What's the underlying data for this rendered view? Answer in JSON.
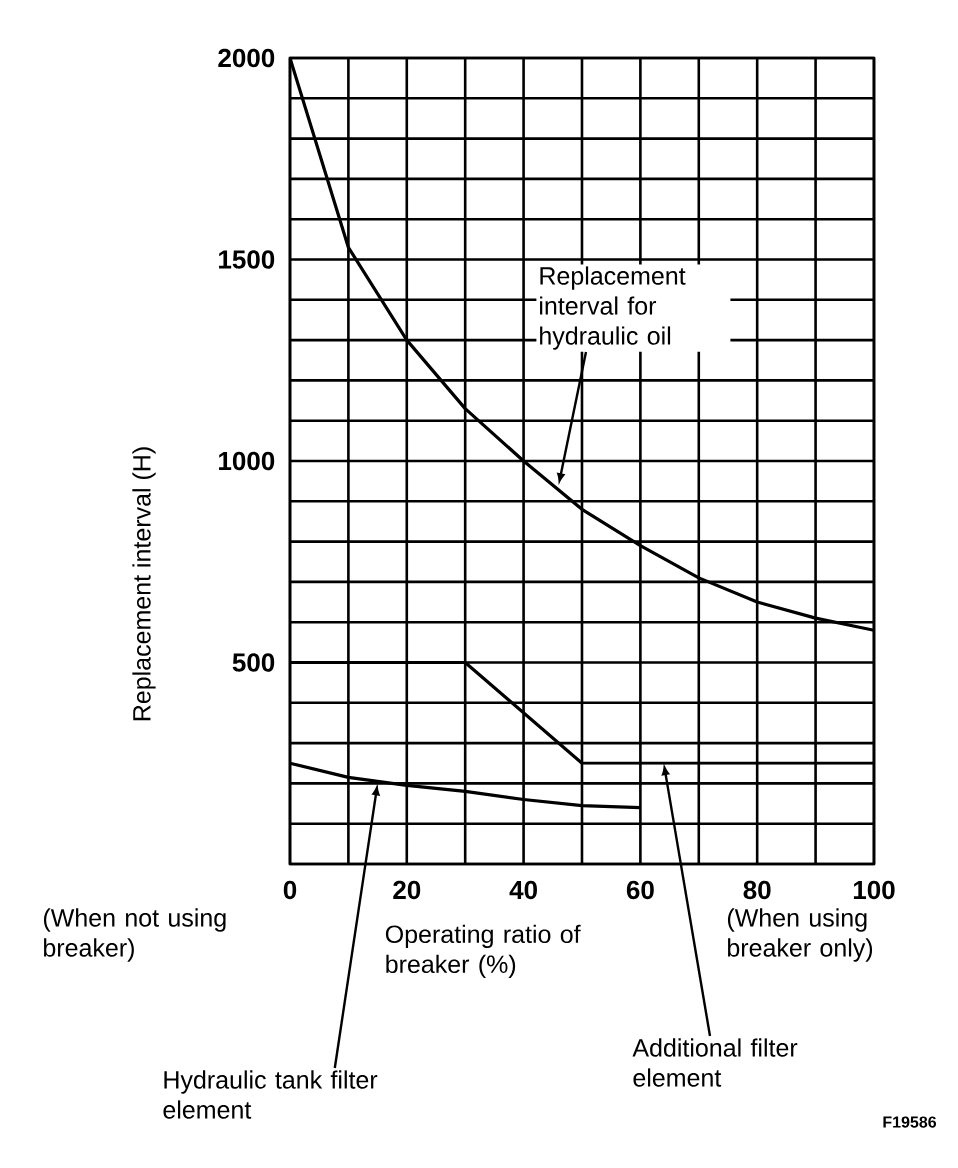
{
  "chart_data": {
    "type": "line",
    "ylabel": "Replacement interval (H)",
    "xlabel": "Operating ratio of breaker (%)",
    "xlim": [
      0,
      100
    ],
    "ylim": [
      0,
      2000
    ],
    "xticks": [
      0,
      {
        "value": 10,
        "label": null
      },
      20,
      {
        "value": 30,
        "label": null
      },
      40,
      {
        "value": 50,
        "label": null
      },
      60,
      {
        "value": 70,
        "label": null
      },
      80,
      {
        "value": 90,
        "label": null
      },
      100
    ],
    "yticks": [
      {
        "value": 0,
        "label": null
      },
      {
        "value": 100,
        "label": null
      },
      {
        "value": 200,
        "label": null
      },
      {
        "value": 300,
        "label": null
      },
      {
        "value": 400,
        "label": null
      },
      500,
      {
        "value": 600,
        "label": null
      },
      {
        "value": 700,
        "label": null
      },
      {
        "value": 800,
        "label": null
      },
      {
        "value": 900,
        "label": null
      },
      1000,
      {
        "value": 1100,
        "label": null
      },
      {
        "value": 1200,
        "label": null
      },
      {
        "value": 1300,
        "label": null
      },
      {
        "value": 1400,
        "label": null
      },
      1500,
      {
        "value": 1600,
        "label": null
      },
      {
        "value": 1700,
        "label": null
      },
      {
        "value": 1800,
        "label": null
      },
      {
        "value": 1900,
        "label": null
      },
      2000
    ],
    "grid": true,
    "line_style": "solid",
    "series": [
      {
        "x": [
          0,
          10,
          20,
          30,
          40,
          50,
          60,
          70,
          80,
          90,
          100
        ],
        "values": [
          2000,
          1530,
          1300,
          1130,
          1000,
          880,
          790,
          710,
          650,
          610,
          580
        ],
        "color": "#000000"
      },
      {
        "x": [
          0,
          10,
          30,
          50,
          60,
          100
        ],
        "values": [
          500,
          500,
          500,
          250,
          250,
          250
        ],
        "color": "#000000"
      },
      {
        "x": [
          0,
          10,
          20,
          30,
          40,
          50,
          60
        ],
        "values": [
          250,
          215,
          195,
          180,
          160,
          145,
          140
        ],
        "color": "#000000"
      }
    ],
    "annotations": [
      {
        "text": "Replacement interval for hydraulic oil",
        "x": 46,
        "y": 940
      },
      "(When not using breaker)",
      "(When using breaker only)",
      {
        "text": "Hydraulic tank filter element",
        "x": 15,
        "y": 200
      },
      {
        "text": "Additional filter element",
        "x": 64,
        "y": 250
      },
      "F19586"
    ]
  }
}
